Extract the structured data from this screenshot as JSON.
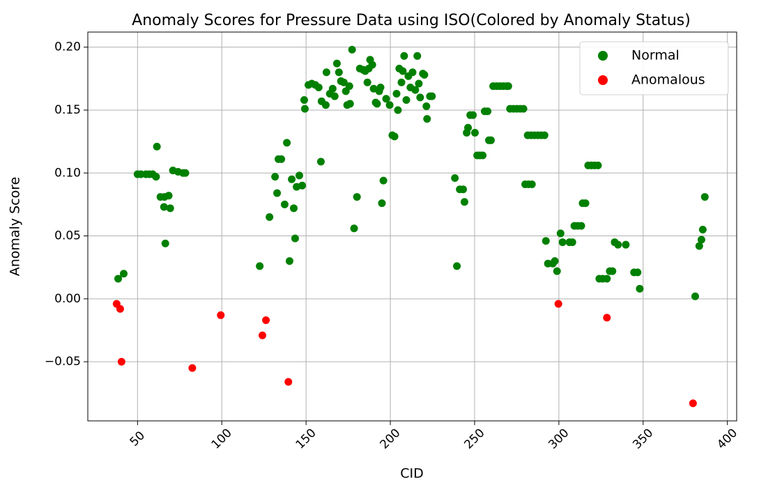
{
  "chart_data": {
    "type": "scatter",
    "title": "Anomaly Scores for Pressure Data using ISO(Colored by Anomaly Status)",
    "x_label": "CID",
    "y_label": "Anomaly Score",
    "xlim": [
      20.5,
      405.5
    ],
    "ylim": [
      -0.097,
      0.212
    ],
    "xticks": [
      50,
      100,
      150,
      200,
      250,
      300,
      350,
      400
    ],
    "yticks": [
      {
        "value": -0.05,
        "label": "−0.05"
      },
      {
        "value": 0,
        "label": "0.00"
      },
      0.05,
      {
        "value": 0.1,
        "label": "0.10"
      },
      0.15,
      {
        "value": 0.2,
        "label": "0.20"
      }
    ],
    "grid": true,
    "legend": "upper right",
    "series": [
      {
        "name": "Normal",
        "color": "#008000",
        "x": [
          38.5,
          41.8,
          50,
          52,
          55,
          57,
          59,
          61,
          61.5,
          63.6,
          66,
          68.5,
          65.7,
          69.4,
          66.5,
          71,
          74,
          77,
          78.4,
          122.5,
          128.3,
          131.6,
          132.8,
          133.6,
          135.3,
          137.3,
          138.6,
          140.2,
          141.5,
          142.7,
          143.5,
          144.4,
          146,
          147.7,
          148.9,
          149.3,
          151.4,
          153.4,
          155.5,
          157.5,
          158.8,
          159.2,
          161.7,
          162.1,
          164.1,
          165.8,
          167,
          168.3,
          169.5,
          170.7,
          172.4,
          173.6,
          174.4,
          175.7,
          176.1,
          177.3,
          178.5,
          180.2,
          181.9,
          183.9,
          185.1,
          186.4,
          187.2,
          188,
          189.3,
          190.1,
          191.3,
          192.1,
          193.4,
          194.2,
          195,
          195.9,
          197.5,
          199.6,
          201.2,
          202.5,
          203.7,
          204.5,
          205.3,
          206.6,
          207.4,
          208.2,
          209.5,
          210.7,
          211.9,
          213.2,
          214.8,
          216,
          216.9,
          217.7,
          219.3,
          220.2,
          221.4,
          221.8,
          223.5,
          224.7,
          238.3,
          239.5,
          241.2,
          243.2,
          244,
          245.3,
          246.1,
          247.4,
          249,
          250.2,
          251.5,
          253.1,
          254.8,
          256,
          257.7,
          258.5,
          259.7,
          261,
          263,
          265,
          267,
          269,
          270,
          271,
          273,
          275,
          277,
          279,
          280,
          282,
          284,
          281.5,
          283.5,
          285.5,
          287.5,
          289.5,
          291.5,
          292.3,
          293.5,
          296.4,
          297.6,
          298.9,
          301,
          302.2,
          306.3,
          308,
          309.2,
          311.2,
          313.3,
          314.1,
          315.8,
          317.4,
          319.3,
          321.2,
          323.2,
          324,
          326,
          328.5,
          330.2,
          331.8,
          333.1,
          335.1,
          339.7,
          344.6,
          346.7,
          348,
          380.9,
          383.3,
          384.6,
          385.4,
          386.6
        ],
        "values": [
          0.016,
          0.02,
          0.099,
          0.099,
          0.099,
          0.099,
          0.099,
          0.097,
          0.121,
          0.081,
          0.081,
          0.082,
          0.073,
          0.072,
          0.044,
          0.102,
          0.101,
          0.1,
          0.1,
          0.026,
          0.065,
          0.097,
          0.084,
          0.111,
          0.111,
          0.075,
          0.124,
          0.03,
          0.095,
          0.072,
          0.048,
          0.089,
          0.098,
          0.09,
          0.158,
          0.151,
          0.17,
          0.171,
          0.17,
          0.168,
          0.109,
          0.157,
          0.154,
          0.18,
          0.163,
          0.167,
          0.161,
          0.187,
          0.18,
          0.173,
          0.172,
          0.165,
          0.154,
          0.169,
          0.155,
          0.198,
          0.056,
          0.081,
          0.183,
          0.182,
          0.181,
          0.172,
          0.183,
          0.19,
          0.186,
          0.167,
          0.156,
          0.155,
          0.165,
          0.168,
          0.076,
          0.094,
          0.159,
          0.154,
          0.13,
          0.129,
          0.163,
          0.15,
          0.183,
          0.172,
          0.181,
          0.193,
          0.158,
          0.177,
          0.168,
          0.18,
          0.166,
          0.193,
          0.171,
          0.16,
          0.179,
          0.178,
          0.153,
          0.143,
          0.161,
          0.161,
          0.096,
          0.026,
          0.087,
          0.087,
          0.077,
          0.132,
          0.136,
          0.146,
          0.146,
          0.132,
          0.114,
          0.114,
          0.114,
          0.149,
          0.149,
          0.126,
          0.126,
          0.169,
          0.169,
          0.169,
          0.169,
          0.169,
          0.169,
          0.151,
          0.151,
          0.151,
          0.151,
          0.151,
          0.091,
          0.091,
          0.091,
          0.13,
          0.13,
          0.13,
          0.13,
          0.13,
          0.13,
          0.046,
          0.028,
          0.028,
          0.03,
          0.022,
          0.052,
          0.045,
          0.045,
          0.045,
          0.058,
          0.058,
          0.058,
          0.076,
          0.076,
          0.106,
          0.106,
          0.106,
          0.106,
          0.016,
          0.016,
          0.016,
          0.022,
          0.022,
          0.045,
          0.043,
          0.043,
          0.021,
          0.021,
          0.008,
          0.002,
          0.042,
          0.047,
          0.055,
          0.081
        ]
      },
      {
        "name": "Anomalous",
        "color": "#ff0000",
        "x": [
          37.6,
          39.7,
          40.5,
          82.5,
          99.4,
          124.1,
          126.2,
          139.5,
          299.7,
          328.5,
          379.6
        ],
        "values": [
          -0.004,
          -0.008,
          -0.05,
          -0.055,
          -0.013,
          -0.029,
          -0.017,
          -0.066,
          -0.004,
          -0.015,
          -0.083
        ]
      }
    ]
  }
}
